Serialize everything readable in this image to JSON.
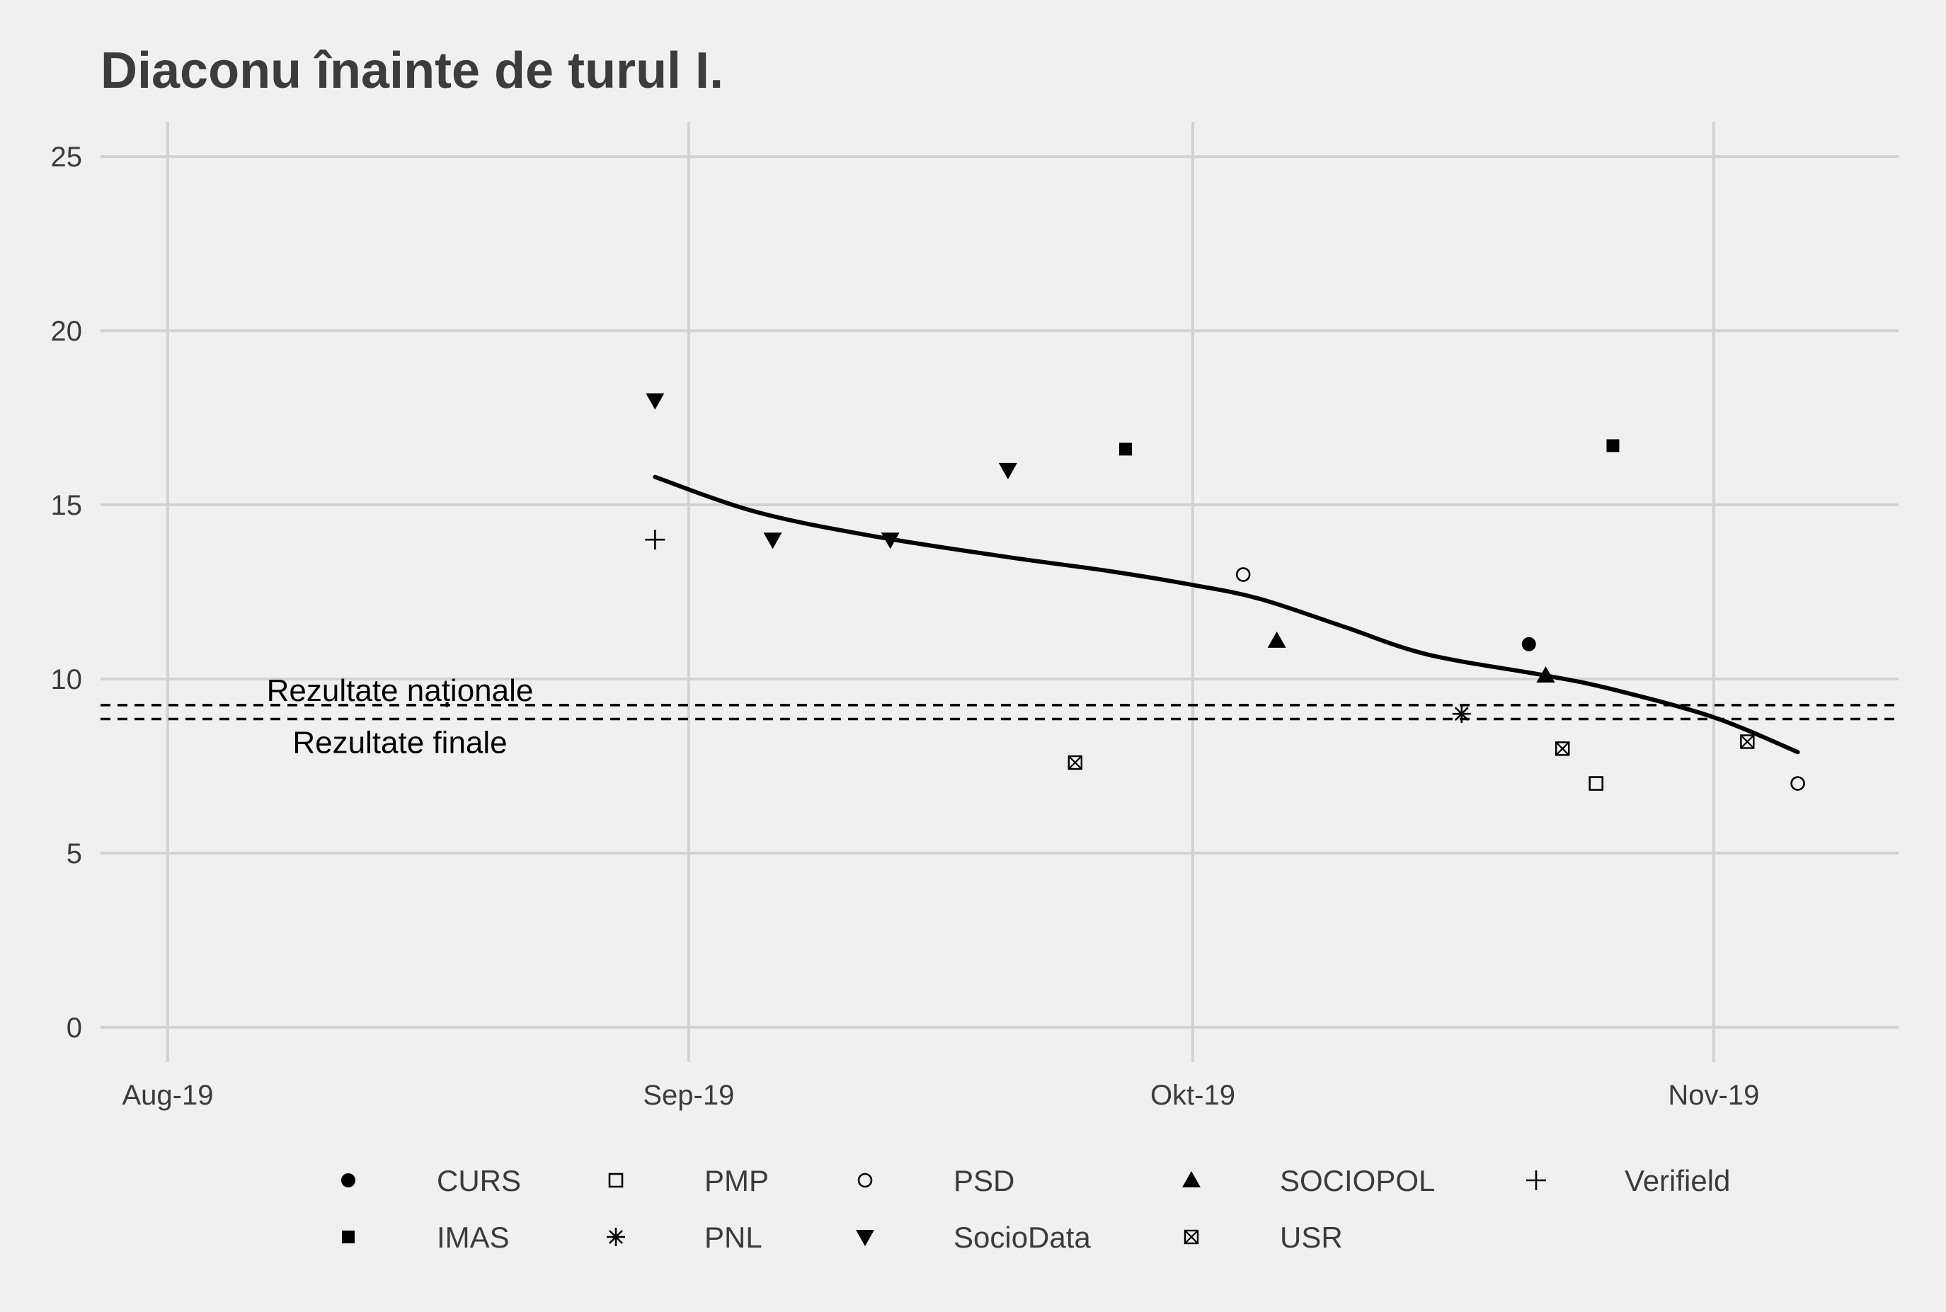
{
  "chart_data": {
    "type": "scatter",
    "title": "Diaconu înainte de turul I.",
    "xlabel": "",
    "ylabel": "",
    "x_axis": {
      "ticks": [
        {
          "date": "2019-08-01",
          "label": "Aug-19"
        },
        {
          "date": "2019-09-01",
          "label": "Sep-19"
        },
        {
          "date": "2019-10-01",
          "label": "Okt-19"
        },
        {
          "date": "2019-11-01",
          "label": "Nov-19"
        }
      ],
      "range": [
        "2019-07-28",
        "2019-11-12"
      ]
    },
    "y_axis": {
      "ticks": [
        0,
        5,
        10,
        15,
        20,
        25
      ],
      "range": [
        -1,
        26
      ]
    },
    "grid": true,
    "legend_position": "bottom",
    "series": [
      {
        "name": "CURS",
        "shape": "filled-circle",
        "points": [
          {
            "x": "2019-10-21",
            "y": 11.0
          }
        ]
      },
      {
        "name": "IMAS",
        "shape": "filled-square",
        "points": [
          {
            "x": "2019-09-27",
            "y": 16.6
          },
          {
            "x": "2019-10-26",
            "y": 16.7
          }
        ]
      },
      {
        "name": "PMP",
        "shape": "open-square",
        "points": [
          {
            "x": "2019-10-25",
            "y": 7.0
          }
        ]
      },
      {
        "name": "PNL",
        "shape": "asterisk",
        "points": [
          {
            "x": "2019-10-17",
            "y": 9.0
          }
        ]
      },
      {
        "name": "PSD",
        "shape": "open-circle",
        "points": [
          {
            "x": "2019-10-04",
            "y": 13.0
          },
          {
            "x": "2019-11-06",
            "y": 7.0
          }
        ]
      },
      {
        "name": "SocioData",
        "shape": "filled-triangle-down",
        "points": [
          {
            "x": "2019-08-30",
            "y": 18.0
          },
          {
            "x": "2019-09-06",
            "y": 14.0
          },
          {
            "x": "2019-09-13",
            "y": 14.0
          },
          {
            "x": "2019-09-20",
            "y": 16.0
          }
        ]
      },
      {
        "name": "SOCIOPOL",
        "shape": "filled-triangle-up",
        "points": [
          {
            "x": "2019-10-06",
            "y": 11.1
          },
          {
            "x": "2019-10-22",
            "y": 10.1
          }
        ]
      },
      {
        "name": "USR",
        "shape": "circled-cross-square",
        "points": [
          {
            "x": "2019-09-24",
            "y": 7.6
          },
          {
            "x": "2019-10-23",
            "y": 8.0
          },
          {
            "x": "2019-11-03",
            "y": 8.2
          }
        ]
      },
      {
        "name": "Verifield",
        "shape": "plus",
        "points": [
          {
            "x": "2019-08-30",
            "y": 14.0
          }
        ]
      }
    ],
    "smooth_line": [
      {
        "x": "2019-08-30",
        "y": 15.8
      },
      {
        "x": "2019-09-05",
        "y": 14.8
      },
      {
        "x": "2019-09-12",
        "y": 14.1
      },
      {
        "x": "2019-09-20",
        "y": 13.5
      },
      {
        "x": "2019-09-26",
        "y": 13.1
      },
      {
        "x": "2019-10-01",
        "y": 12.7
      },
      {
        "x": "2019-10-05",
        "y": 12.3
      },
      {
        "x": "2019-10-10",
        "y": 11.5
      },
      {
        "x": "2019-10-15",
        "y": 10.7
      },
      {
        "x": "2019-10-22",
        "y": 10.1
      },
      {
        "x": "2019-10-26",
        "y": 9.7
      },
      {
        "x": "2019-11-01",
        "y": 8.9
      },
      {
        "x": "2019-11-06",
        "y": 7.9
      }
    ],
    "reference_lines": [
      {
        "label": "Rezultate naționale",
        "y": 9.25,
        "style": "dashed"
      },
      {
        "label": "Rezultate finale",
        "y": 8.85,
        "style": "dashed"
      }
    ],
    "legend_rows": [
      [
        "CURS",
        "PMP",
        "PSD",
        "SOCIOPOL",
        "Verifield"
      ],
      [
        "IMAS",
        "PNL",
        "SocioData",
        "USR"
      ]
    ]
  }
}
